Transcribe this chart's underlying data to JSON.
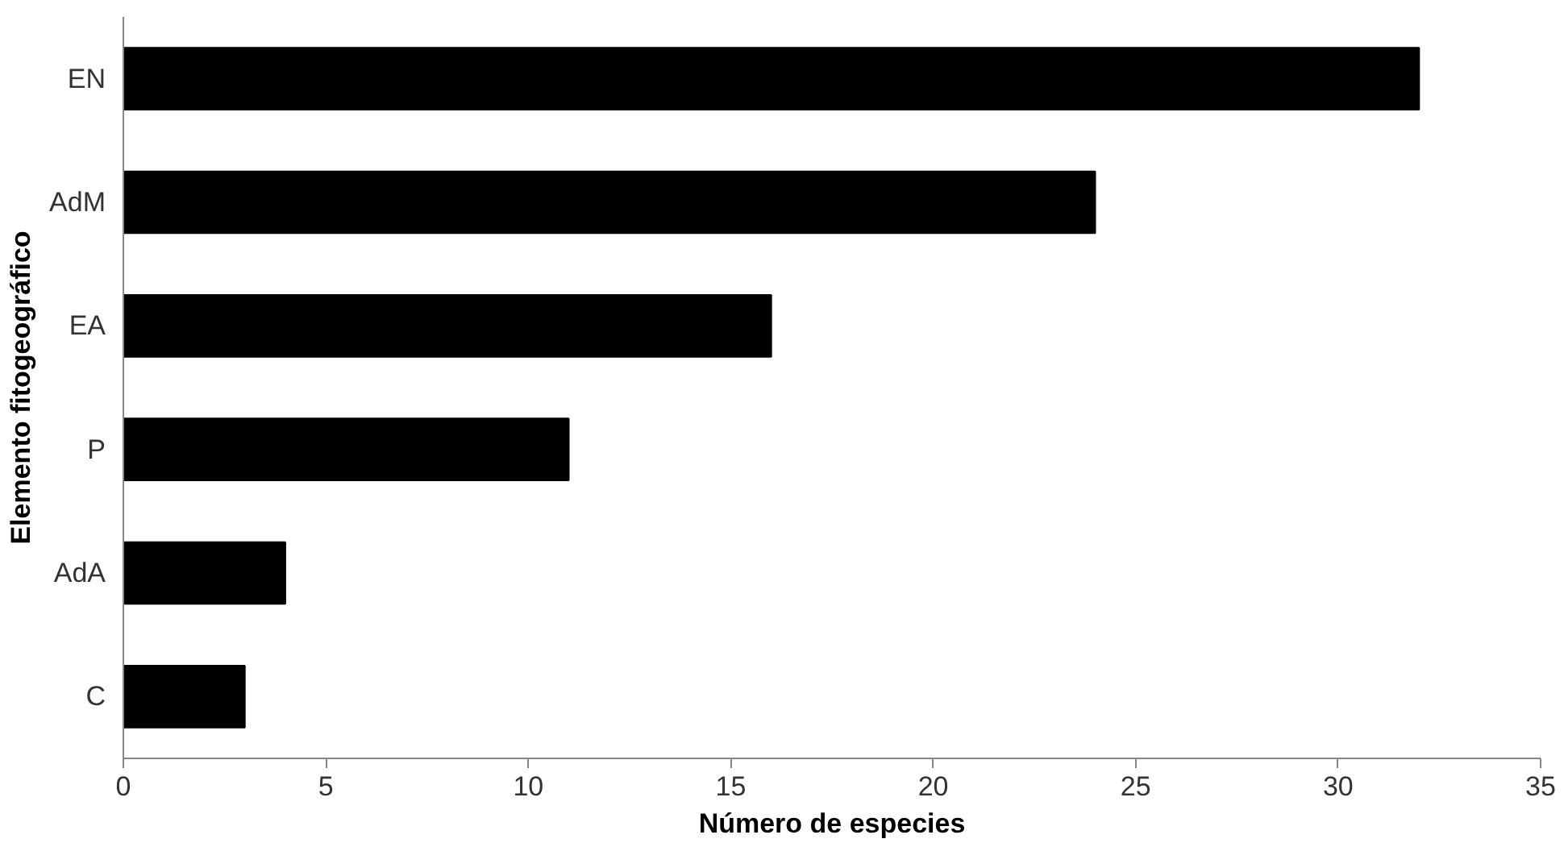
{
  "chart_data": {
    "type": "bar",
    "orientation": "horizontal",
    "xlabel": "Número de especies",
    "ylabel": "Elemento fitogeográfico",
    "categories": [
      "EN",
      "AdM",
      "EA",
      "P",
      "AdA",
      "C"
    ],
    "values": [
      32,
      24,
      16,
      11,
      4,
      3
    ],
    "color": "#000000",
    "xlim": [
      0,
      35
    ],
    "xticks": [
      0,
      5,
      10,
      15,
      20,
      25,
      30,
      35
    ],
    "grid": false
  }
}
